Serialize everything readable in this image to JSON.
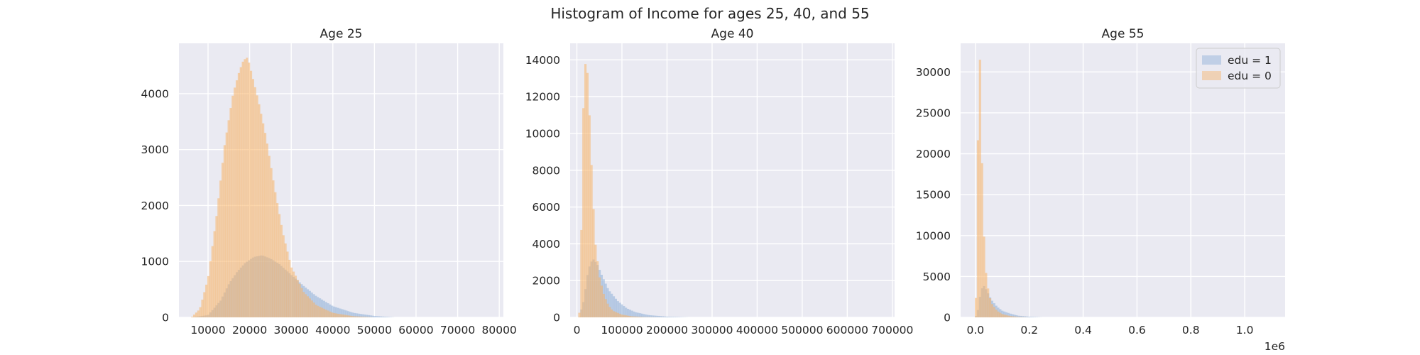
{
  "figure": {
    "title": "Histogram of Income for ages 25, 40, and 55",
    "colors": {
      "edu1": "#8fb0d8",
      "edu0": "#f7b46a",
      "axes_bg": "#eaeaf2",
      "grid": "#ffffff"
    }
  },
  "legend": {
    "placement": "top-right",
    "panel": 2,
    "entries": [
      "edu = 1",
      "edu = 0"
    ]
  },
  "chart_data": [
    {
      "type": "histogram",
      "title": "Age 25",
      "xlim": [
        3000,
        81000
      ],
      "ylim": [
        0,
        4900
      ],
      "xticks": [
        10000,
        20000,
        30000,
        40000,
        50000,
        60000,
        70000,
        80000
      ],
      "xtick_labels": [
        "10000",
        "20000",
        "30000",
        "40000",
        "50000",
        "60000",
        "70000",
        "80000"
      ],
      "yticks": [
        0,
        1000,
        2000,
        3000,
        4000
      ],
      "ytick_labels": [
        "0",
        "1000",
        "2000",
        "3000",
        "4000"
      ],
      "grid": true,
      "series": [
        {
          "name": "edu = 1",
          "x": [
            6000,
            10000,
            13000,
            15000,
            17000,
            19000,
            21000,
            23000,
            25000,
            27000,
            30000,
            33000,
            36000,
            40000,
            45000,
            50000,
            55000
          ],
          "y": [
            0,
            40,
            300,
            600,
            820,
            980,
            1080,
            1110,
            1050,
            960,
            760,
            560,
            380,
            200,
            80,
            25,
            0
          ]
        },
        {
          "name": "edu = 0",
          "x": [
            6000,
            8000,
            10000,
            12000,
            14000,
            16000,
            17500,
            18500,
            19500,
            20500,
            22000,
            24000,
            26000,
            28000,
            30000,
            33000,
            36000,
            40000,
            45000,
            50000
          ],
          "y": [
            0,
            150,
            700,
            1800,
            3100,
            4000,
            4400,
            4600,
            4650,
            4350,
            3900,
            3200,
            2300,
            1500,
            900,
            450,
            220,
            80,
            20,
            0
          ]
        }
      ]
    },
    {
      "type": "histogram",
      "title": "Age 40",
      "xlim": [
        -15000,
        705000
      ],
      "ylim": [
        0,
        14900
      ],
      "xticks": [
        0,
        100000,
        200000,
        300000,
        400000,
        500000,
        600000,
        700000
      ],
      "xtick_labels": [
        "0",
        "100000",
        "200000",
        "300000",
        "400000",
        "500000",
        "600000",
        "700000"
      ],
      "yticks": [
        0,
        2000,
        4000,
        6000,
        8000,
        10000,
        12000,
        14000
      ],
      "ytick_labels": [
        "0",
        "2000",
        "4000",
        "6000",
        "8000",
        "10000",
        "12000",
        "14000"
      ],
      "grid": true,
      "series": [
        {
          "name": "edu = 1",
          "x": [
            5000,
            15000,
            25000,
            35000,
            45000,
            55000,
            70000,
            90000,
            110000,
            130000,
            160000,
            200000,
            250000
          ],
          "y": [
            0,
            900,
            2600,
            3200,
            2900,
            2300,
            1500,
            900,
            500,
            280,
            120,
            40,
            0
          ]
        },
        {
          "name": "edu = 0",
          "x": [
            5000,
            10000,
            15000,
            20000,
            25000,
            30000,
            35000,
            40000,
            50000,
            60000,
            70000,
            80000,
            100000,
            120000,
            150000,
            200000
          ],
          "y": [
            0,
            5000,
            12500,
            14200,
            12800,
            9500,
            6800,
            4200,
            2200,
            1200,
            650,
            350,
            150,
            60,
            15,
            0
          ]
        }
      ]
    },
    {
      "type": "histogram",
      "title": "Age 55",
      "xlim": [
        -0.055,
        1.15
      ],
      "ylim": [
        0,
        33500
      ],
      "xaxis_multiplier": "1e6",
      "xticks": [
        0.0,
        0.2,
        0.4,
        0.6,
        0.8,
        1.0
      ],
      "xtick_labels": [
        "0.0",
        "0.2",
        "0.4",
        "0.6",
        "0.8",
        "1.0"
      ],
      "yticks": [
        0,
        5000,
        10000,
        15000,
        20000,
        25000,
        30000
      ],
      "ytick_labels": [
        "0",
        "5000",
        "10000",
        "15000",
        "20000",
        "25000",
        "30000"
      ],
      "grid": true,
      "series": [
        {
          "name": "edu = 1",
          "x": [
            0.0,
            0.01,
            0.02,
            0.03,
            0.04,
            0.05,
            0.06,
            0.08,
            0.1,
            0.13,
            0.16,
            0.2,
            0.25
          ],
          "y": [
            0,
            1000,
            3300,
            3900,
            3400,
            2700,
            2100,
            1300,
            800,
            450,
            200,
            80,
            0
          ]
        },
        {
          "name": "edu = 0",
          "x": [
            0.0,
            0.005,
            0.01,
            0.015,
            0.02,
            0.025,
            0.03,
            0.035,
            0.04,
            0.05,
            0.06,
            0.08,
            0.1,
            0.13,
            0.16,
            0.2
          ],
          "y": [
            0,
            8000,
            25000,
            33500,
            27000,
            17000,
            11000,
            7500,
            5000,
            2800,
            1700,
            800,
            400,
            150,
            50,
            0
          ]
        }
      ]
    }
  ]
}
